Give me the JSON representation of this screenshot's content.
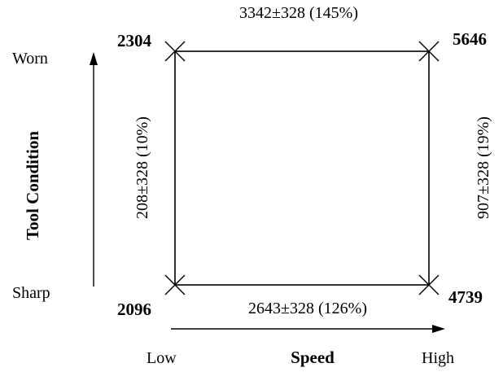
{
  "corners": {
    "top_left": "2304",
    "top_right": "5646",
    "bottom_left": "2096",
    "bottom_right": "4739"
  },
  "edges": {
    "top": "3342±328 (145%)",
    "bottom": "2643±328 (126%)",
    "left": "208±328 (10%)",
    "right": "907±328 (19%)"
  },
  "vertical_axis": {
    "title": "Tool Condition",
    "high_label": "Worn",
    "low_label": "Sharp"
  },
  "horizontal_axis": {
    "title": "Speed",
    "low_label": "Low",
    "high_label": "High"
  }
}
